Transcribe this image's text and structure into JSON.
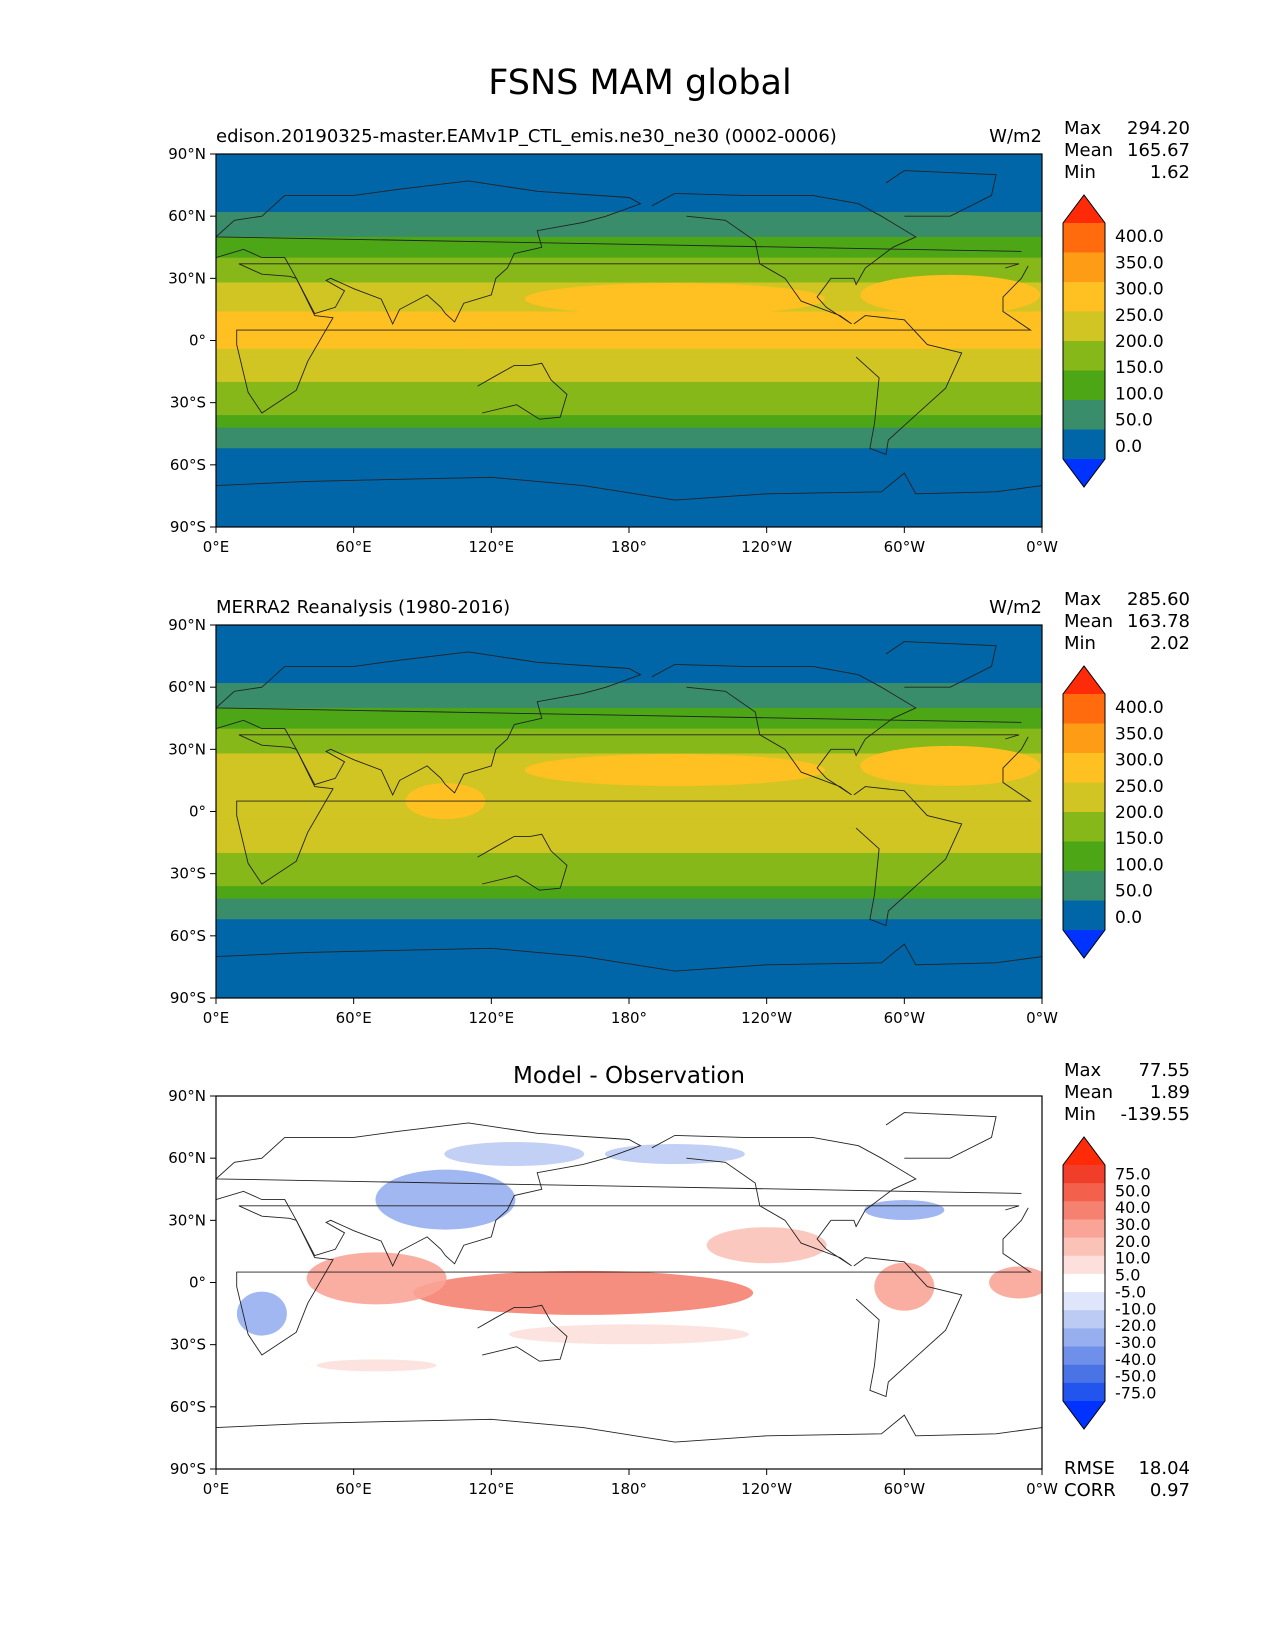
{
  "figure": {
    "title": "FSNS MAM global"
  },
  "chart_data": [
    {
      "type": "heatmap",
      "title": "edison.20190325-master.EAMv1P_CTL_emis.ne30_ne30 (0002-0006)",
      "units": "W/m2",
      "stats": {
        "max_label": "Max",
        "max": "294.20",
        "mean_label": "Mean",
        "mean": "165.67",
        "min_label": "Min",
        "min": "1.62"
      },
      "colorbar": {
        "levels": [
          "0.0",
          "50.0",
          "100.0",
          "150.0",
          "200.0",
          "250.0",
          "300.0",
          "350.0",
          "400.0"
        ],
        "colors": [
          "#0033ff",
          "#0066a8",
          "#3a8d6a",
          "#4ca616",
          "#86b81a",
          "#d1c523",
          "#ffc021",
          "#ff9c15",
          "#ff6b0d",
          "#ff2a08"
        ]
      },
      "x_ticks": [
        "0°E",
        "60°E",
        "120°E",
        "180°",
        "120°W",
        "60°W",
        "0°W"
      ],
      "y_ticks": [
        "90°N",
        "60°N",
        "30°N",
        "0°",
        "30°S",
        "60°S",
        "90°S"
      ]
    },
    {
      "type": "heatmap",
      "title": "MERRA2 Reanalysis (1980-2016)",
      "units": "W/m2",
      "stats": {
        "max_label": "Max",
        "max": "285.60",
        "mean_label": "Mean",
        "mean": "163.78",
        "min_label": "Min",
        "min": "2.02"
      },
      "colorbar": {
        "levels": [
          "0.0",
          "50.0",
          "100.0",
          "150.0",
          "200.0",
          "250.0",
          "300.0",
          "350.0",
          "400.0"
        ],
        "colors": [
          "#0033ff",
          "#0066a8",
          "#3a8d6a",
          "#4ca616",
          "#86b81a",
          "#d1c523",
          "#ffc021",
          "#ff9c15",
          "#ff6b0d",
          "#ff2a08"
        ]
      },
      "x_ticks": [
        "0°E",
        "60°E",
        "120°E",
        "180°",
        "120°W",
        "60°W",
        "0°W"
      ],
      "y_ticks": [
        "90°N",
        "60°N",
        "30°N",
        "0°",
        "30°S",
        "60°S",
        "90°S"
      ]
    },
    {
      "type": "heatmap",
      "title": "Model - Observation",
      "units": "",
      "stats": {
        "max_label": "Max",
        "max": "77.55",
        "mean_label": "Mean",
        "mean": "1.89",
        "min_label": "Min",
        "min": "-139.55"
      },
      "rmse_label": "RMSE",
      "rmse": "18.04",
      "corr_label": "CORR",
      "corr": "0.97",
      "colorbar": {
        "levels": [
          "-75.0",
          "-50.0",
          "-40.0",
          "-30.0",
          "-20.0",
          "-10.0",
          "-5.0",
          "5.0",
          "10.0",
          "20.0",
          "30.0",
          "40.0",
          "50.0",
          "75.0"
        ],
        "colors": [
          "#0033ff",
          "#2255ee",
          "#4a74e6",
          "#6f90ea",
          "#97afef",
          "#bccbf4",
          "#dfe6fb",
          "#ffffff",
          "#fde0dc",
          "#fbc2b8",
          "#f9a497",
          "#f58271",
          "#f3604c",
          "#f03e2a",
          "#ff2a08"
        ]
      },
      "x_ticks": [
        "0°E",
        "60°E",
        "120°E",
        "180°",
        "120°W",
        "60°W",
        "0°W"
      ],
      "y_ticks": [
        "90°N",
        "60°N",
        "30°N",
        "0°",
        "30°S",
        "60°S",
        "90°S"
      ]
    }
  ]
}
